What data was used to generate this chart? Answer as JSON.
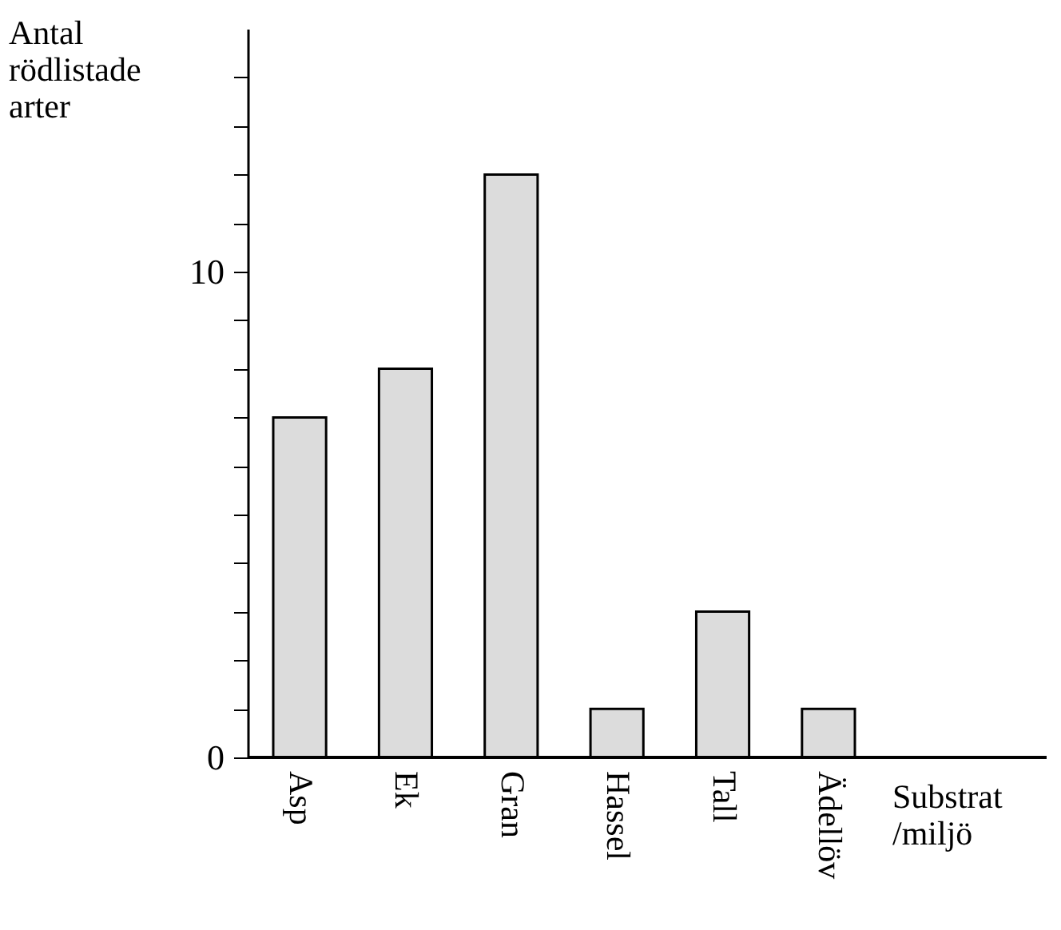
{
  "chart_data": {
    "type": "bar",
    "xlabel": "Substrat\n/miljö",
    "ylabel": "Antal\nrödlistade\narter",
    "categories": [
      "Asp",
      "Ek",
      "Gran",
      "Hassel",
      "Tall",
      "Ädellöv"
    ],
    "values": [
      7,
      8,
      12,
      1,
      3,
      1
    ],
    "color": "#dcdcdc",
    "ylim": [
      0,
      15
    ],
    "yticks": [
      0,
      {
        "value": 1,
        "label": null
      },
      {
        "value": 2,
        "label": null
      },
      {
        "value": 3,
        "label": null
      },
      {
        "value": 4,
        "label": null
      },
      {
        "value": 5,
        "label": null
      },
      {
        "value": 6,
        "label": null
      },
      {
        "value": 7,
        "label": null
      },
      {
        "value": 8,
        "label": null
      },
      {
        "value": 9,
        "label": null
      },
      10,
      {
        "value": 11,
        "label": null
      },
      {
        "value": 12,
        "label": null
      },
      {
        "value": 13,
        "label": null
      },
      {
        "value": 14,
        "label": null
      }
    ],
    "grid": false
  }
}
